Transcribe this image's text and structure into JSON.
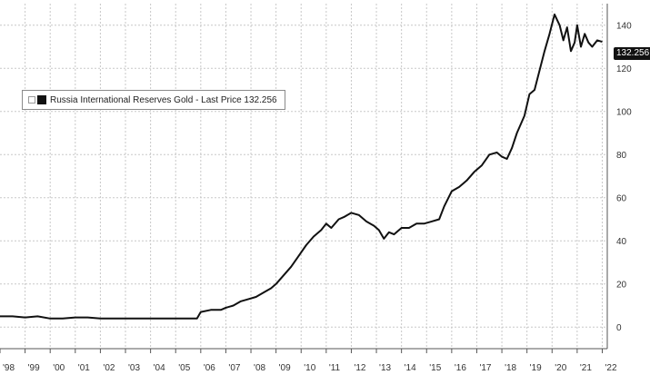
{
  "chart_data": {
    "type": "line",
    "title": "",
    "xlabel": "",
    "ylabel": "",
    "xlim": [
      1998.0,
      2022.2
    ],
    "ylim": [
      -10,
      150
    ],
    "yticks": [
      0,
      20,
      40,
      60,
      80,
      100,
      120,
      140
    ],
    "ytick_labels": [
      "0",
      "20",
      "40",
      "60",
      "80",
      "100",
      "120",
      "140"
    ],
    "xtick_labels": [
      "'98",
      "'99",
      "'00",
      "'01",
      "'02",
      "'03",
      "'04",
      "'05",
      "'06",
      "'07",
      "'08",
      "'09",
      "'10",
      "'11",
      "'12",
      "'13",
      "'14",
      "'15",
      "'16",
      "'17",
      "'18",
      "'19",
      "'20",
      "'21",
      "'22"
    ],
    "grid": true,
    "legend": {
      "placement": "top-left",
      "entries": [
        "Russia International Reserves Gold - Last Price 132.256"
      ]
    },
    "last_value_label": "132.256",
    "series": [
      {
        "name": "Russia International Reserves Gold - Last Price 132.256",
        "color": "#111111",
        "x": [
          1998.0,
          1998.5,
          1999.0,
          1999.5,
          2000.0,
          2000.5,
          2001.0,
          2001.5,
          2002.0,
          2002.5,
          2003.0,
          2003.5,
          2004.0,
          2004.5,
          2005.0,
          2005.5,
          2005.85,
          2006.0,
          2006.4,
          2006.8,
          2007.0,
          2007.3,
          2007.6,
          2007.9,
          2008.2,
          2008.5,
          2008.8,
          2009.0,
          2009.3,
          2009.6,
          2009.9,
          2010.2,
          2010.5,
          2010.8,
          2011.0,
          2011.2,
          2011.5,
          2011.7,
          2012.0,
          2012.3,
          2012.6,
          2012.9,
          2013.1,
          2013.3,
          2013.5,
          2013.7,
          2014.0,
          2014.3,
          2014.6,
          2014.9,
          2015.2,
          2015.5,
          2015.7,
          2016.0,
          2016.3,
          2016.6,
          2016.9,
          2017.2,
          2017.5,
          2017.8,
          2018.0,
          2018.2,
          2018.4,
          2018.6,
          2018.9,
          2019.1,
          2019.3,
          2019.5,
          2019.7,
          2019.9,
          2020.1,
          2020.3,
          2020.45,
          2020.6,
          2020.75,
          2020.9,
          2021.0,
          2021.15,
          2021.3,
          2021.45,
          2021.6,
          2021.8,
          2022.0
        ],
        "values": [
          5,
          5,
          4.5,
          5,
          4,
          4,
          4.5,
          4.5,
          4,
          4,
          4,
          4,
          4,
          4,
          4,
          4,
          4,
          7,
          8,
          8,
          9,
          10,
          12,
          13,
          14,
          16,
          18,
          20,
          24,
          28,
          33,
          38,
          42,
          45,
          48,
          46,
          50,
          51,
          53,
          52,
          49,
          47,
          45,
          41,
          44,
          43,
          46,
          46,
          48,
          48,
          49,
          50,
          56,
          63,
          65,
          68,
          72,
          75,
          80,
          81,
          79,
          78,
          83,
          90,
          98,
          108,
          110,
          119,
          128,
          136,
          145,
          140,
          133,
          139,
          128,
          132,
          140,
          130,
          136,
          132,
          130,
          133,
          132.256
        ]
      }
    ]
  }
}
